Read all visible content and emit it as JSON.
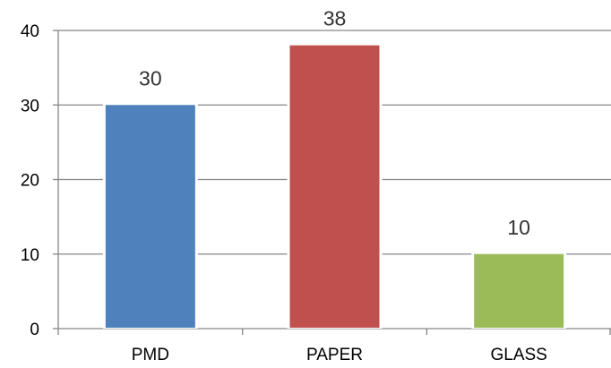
{
  "chart_data": {
    "type": "bar",
    "title": "",
    "xlabel": "",
    "ylabel": "",
    "categories": [
      "PMD",
      "PAPER",
      "GLASS"
    ],
    "values": [
      30,
      38,
      10
    ],
    "data_labels": [
      "30",
      "38",
      "10"
    ],
    "bar_colors": [
      "#4f81bd",
      "#c0504d",
      "#9bbb59"
    ],
    "ylim": [
      0,
      40
    ],
    "yticks": [
      0,
      10,
      20,
      30,
      40
    ],
    "ytick_labels": [
      "0",
      "10",
      "20",
      "30",
      "40"
    ],
    "grid": true,
    "legend": "none"
  }
}
